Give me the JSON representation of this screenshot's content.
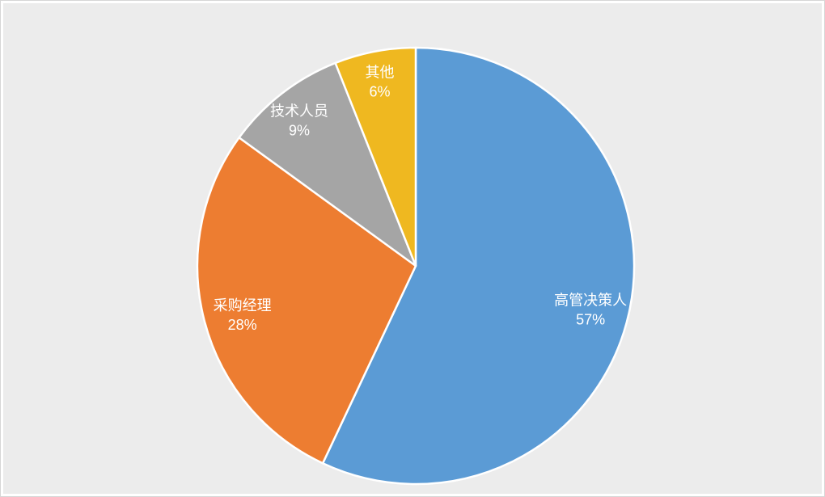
{
  "chart_data": {
    "type": "pie",
    "title": "",
    "categories": [
      "高管决策人",
      "采购经理",
      "技术人员",
      "其他"
    ],
    "values": [
      57,
      28,
      9,
      6
    ],
    "percent_labels": [
      "57%",
      "28%",
      "9%",
      "6%"
    ],
    "colors": [
      "#5B9BD5",
      "#ED7D31",
      "#A5A5A5",
      "#EFB820"
    ],
    "layout": {
      "start_angle_deg": 0,
      "direction": "clockwise",
      "legend": "none",
      "label_position": "inside",
      "label_color": "#FFFFFF",
      "label_radius_fractions": [
        0.82,
        0.82,
        0.87,
        0.88
      ],
      "separator_color": "#FFFFFF",
      "background_color": "#ECECEC"
    }
  }
}
